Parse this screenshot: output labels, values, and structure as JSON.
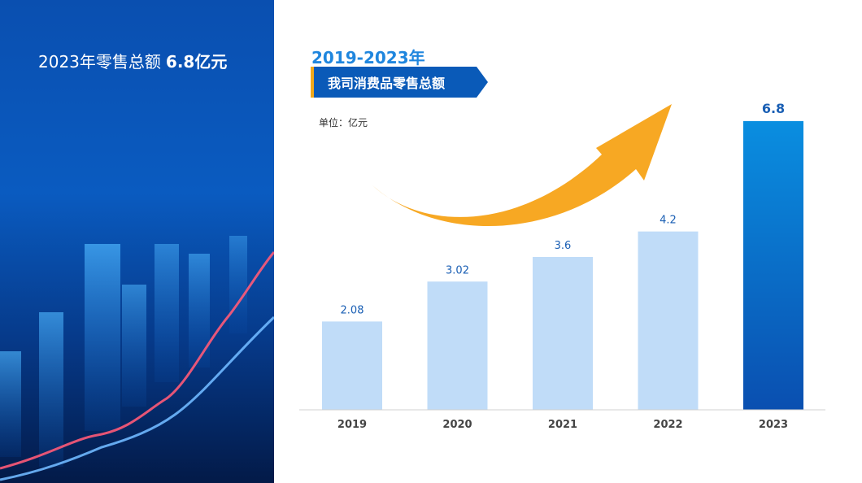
{
  "left_panel": {
    "title": "2023年零售总额",
    "title_value": "6.8亿元"
  },
  "header": {
    "year_range": "2019-2023年",
    "banner_label": "我司消费品零售总额",
    "unit": "单位：亿元"
  },
  "colors": {
    "bar_light": "#c0dcf8",
    "bar_highlight_top": "#0a8ee0",
    "bar_highlight_bottom": "#0a4fb0",
    "arrow": "#f7a823",
    "banner": "#0a5ab8",
    "banner_accent": "#f0a91c",
    "value_label": "#1a5fb4"
  },
  "chart_data": {
    "type": "bar",
    "categories": [
      "2019",
      "2020",
      "2021",
      "2022",
      "2023"
    ],
    "values": [
      2.08,
      3.02,
      3.6,
      4.2,
      6.8
    ],
    "value_labels": [
      "2.08",
      "3.02",
      "3.6",
      "4.2",
      "6.8"
    ],
    "highlight_index": 4,
    "ylim": [
      0,
      7.2
    ],
    "grid": false,
    "annotation": "upward-trend-arrow"
  }
}
